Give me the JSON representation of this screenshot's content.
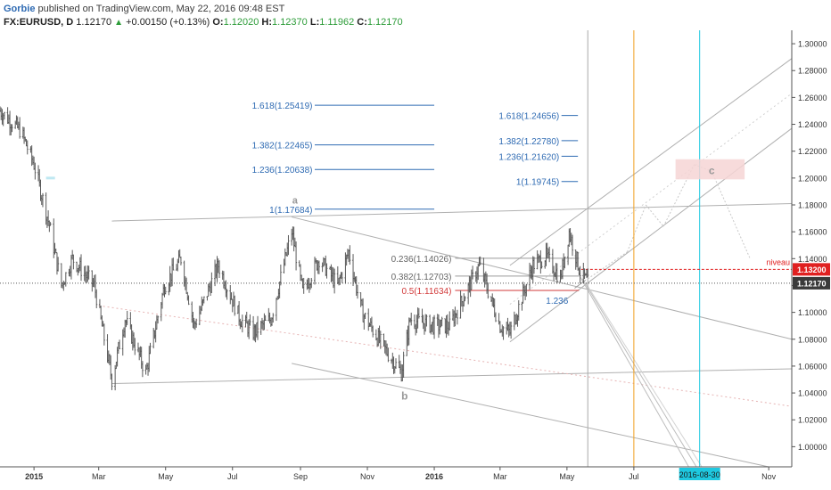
{
  "header": {
    "author": "Gorbie",
    "published": "published on TradingView.com, May 22, 2016 09:48 EST",
    "symbol": "FX:EURUSD, D",
    "last": "1.12170",
    "change": "+0.00150 (+0.13%)",
    "open_label": "O:",
    "open": "1.12020",
    "high_label": "H:",
    "high": "1.12370",
    "low_label": "L:",
    "low": "1.11962",
    "close_label": "C:",
    "close": "1.12170"
  },
  "chart_data": {
    "type": "candlestick",
    "symbol": "EURUSD",
    "timeframe": "D",
    "ylim": [
      0.985,
      1.31
    ],
    "xlim": [
      "2014-12-01",
      "2016-11-22"
    ],
    "y_ticks": [
      "1.30000",
      "1.28000",
      "1.26000",
      "1.24000",
      "1.22000",
      "1.20000",
      "1.18000",
      "1.16000",
      "1.14000",
      "1.12000",
      "1.10000",
      "1.08000",
      "1.06000",
      "1.04000",
      "1.02000",
      "1.00000"
    ],
    "x_ticks": [
      {
        "label": "2015",
        "date": "2015-01-01"
      },
      {
        "label": "Mar",
        "date": "2015-03-01"
      },
      {
        "label": "May",
        "date": "2015-05-01"
      },
      {
        "label": "Jul",
        "date": "2015-07-01"
      },
      {
        "label": "Sep",
        "date": "2015-09-01"
      },
      {
        "label": "Nov",
        "date": "2015-11-01"
      },
      {
        "label": "2016",
        "date": "2016-01-01"
      },
      {
        "label": "Mar",
        "date": "2016-03-01"
      },
      {
        "label": "May",
        "date": "2016-05-01"
      },
      {
        "label": "Jul",
        "date": "2016-07-01"
      },
      {
        "label": "2016-08-30",
        "date": "2016-08-30"
      },
      {
        "label": "Nov",
        "date": "2016-11-01"
      }
    ],
    "price_path": [
      [
        "2014-12-01",
        1.25
      ],
      [
        "2014-12-20",
        1.235
      ],
      [
        "2015-01-01",
        1.21
      ],
      [
        "2015-01-15",
        1.165
      ],
      [
        "2015-01-26",
        1.12
      ],
      [
        "2015-02-05",
        1.14
      ],
      [
        "2015-02-25",
        1.12
      ],
      [
        "2015-03-05",
        1.085
      ],
      [
        "2015-03-13",
        1.05
      ],
      [
        "2015-03-25",
        1.095
      ],
      [
        "2015-04-13",
        1.055
      ],
      [
        "2015-04-30",
        1.12
      ],
      [
        "2015-05-15",
        1.14
      ],
      [
        "2015-05-27",
        1.09
      ],
      [
        "2015-06-18",
        1.135
      ],
      [
        "2015-07-08",
        1.095
      ],
      [
        "2015-07-20",
        1.085
      ],
      [
        "2015-08-05",
        1.095
      ],
      [
        "2015-08-24",
        1.16
      ],
      [
        "2015-09-03",
        1.115
      ],
      [
        "2015-09-18",
        1.14
      ],
      [
        "2015-10-05",
        1.12
      ],
      [
        "2015-10-15",
        1.145
      ],
      [
        "2015-10-27",
        1.1
      ],
      [
        "2015-11-15",
        1.075
      ],
      [
        "2015-12-02",
        1.055
      ],
      [
        "2015-12-10",
        1.095
      ],
      [
        "2015-12-31",
        1.09
      ],
      [
        "2016-01-15",
        1.09
      ],
      [
        "2016-02-11",
        1.135
      ],
      [
        "2016-03-01",
        1.09
      ],
      [
        "2016-03-10",
        1.085
      ],
      [
        "2016-03-31",
        1.135
      ],
      [
        "2016-04-12",
        1.142
      ],
      [
        "2016-04-25",
        1.125
      ],
      [
        "2016-05-03",
        1.16
      ],
      [
        "2016-05-13",
        1.13
      ],
      [
        "2016-05-20",
        1.122
      ]
    ],
    "left_fib_levels": [
      {
        "label": "1.618(1.25419)",
        "value": 1.25419
      },
      {
        "label": "1.382(1.22465)",
        "value": 1.22465
      },
      {
        "label": "1.236(1.20638)",
        "value": 1.20638
      },
      {
        "label": "1(1.17684)",
        "value": 1.17684
      }
    ],
    "right_fib_levels": [
      {
        "label": "1.618(1.24656)",
        "value": 1.24656
      },
      {
        "label": "1.382(1.22780)",
        "value": 1.2278
      },
      {
        "label": "1.236(1.21620)",
        "value": 1.2162
      },
      {
        "label": "1(1.19745)",
        "value": 1.19745
      }
    ],
    "retracements": [
      {
        "label": "0.236(1.14026)",
        "value": 1.14026,
        "color": "#666666"
      },
      {
        "label": "0.382(1.12703)",
        "value": 1.12703,
        "color": "#666666"
      },
      {
        "label": "0.5(1.11634)",
        "value": 1.11634,
        "color": "#d23a3a"
      }
    ],
    "extension_label": "1.236",
    "wave_labels": [
      "a",
      "b",
      "c"
    ],
    "level_label": "niveau",
    "level_price": "1.13200",
    "current_price": "1.12170",
    "vertical_lines": [
      {
        "date": "2016-05-20",
        "color": "#aaaaaa"
      },
      {
        "date": "2016-07-01",
        "color": "#f0a020"
      },
      {
        "date": "2016-08-30",
        "color": "#1ec8e0"
      }
    ],
    "colors": {
      "up": "#555555",
      "fib": "#2f6bb3",
      "retrace": "#d23a3a",
      "level": "#e02020",
      "target_zone": "#f6d5d5",
      "channel": "#b0b0b0"
    },
    "grid": false
  }
}
